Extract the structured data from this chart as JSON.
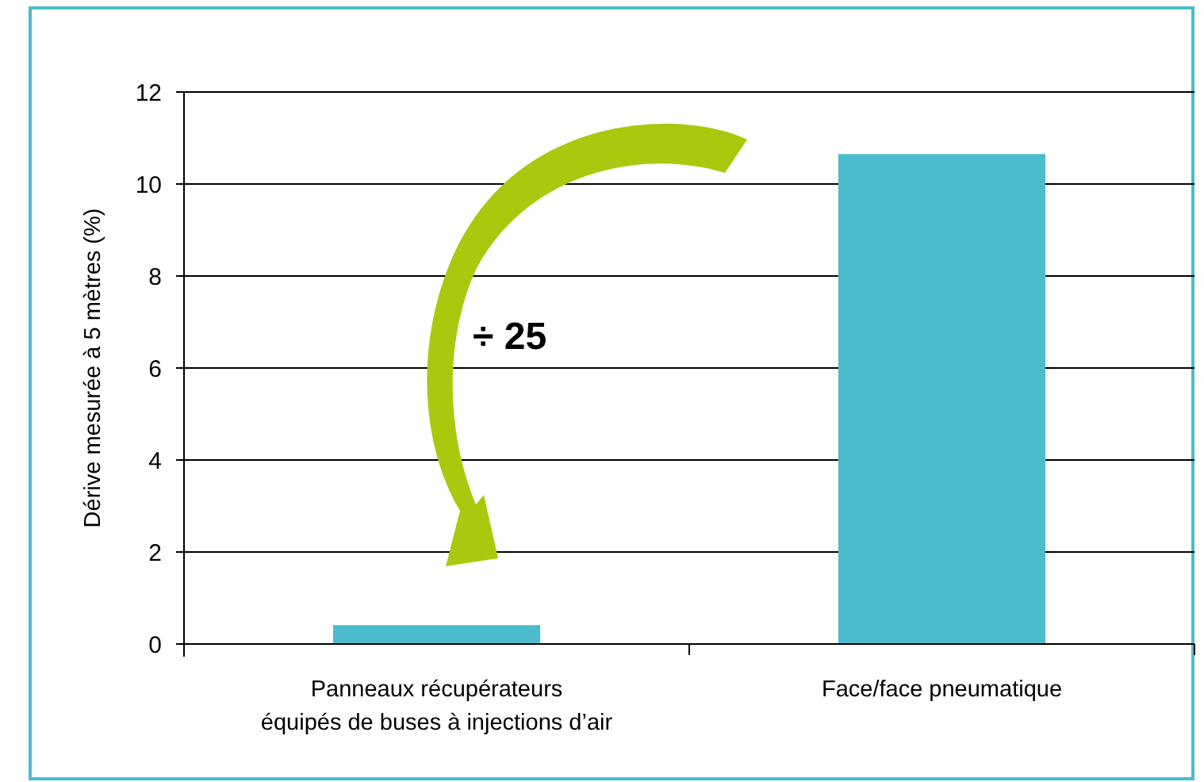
{
  "chart_data": {
    "type": "bar",
    "ylabel": "Dérive mesurée à 5 mètres (%)",
    "categories": [
      "Panneaux récupérateurs\néquipés de buses à injections d’air",
      "Face/face pneumatique"
    ],
    "values": [
      0.41,
      10.65
    ],
    "color": "#4cbccd",
    "ylim": [
      0,
      12
    ],
    "yticks": [
      0,
      2,
      4,
      6,
      8,
      10,
      12
    ],
    "grid": "y",
    "annotations": [
      "÷ 25"
    ]
  }
}
